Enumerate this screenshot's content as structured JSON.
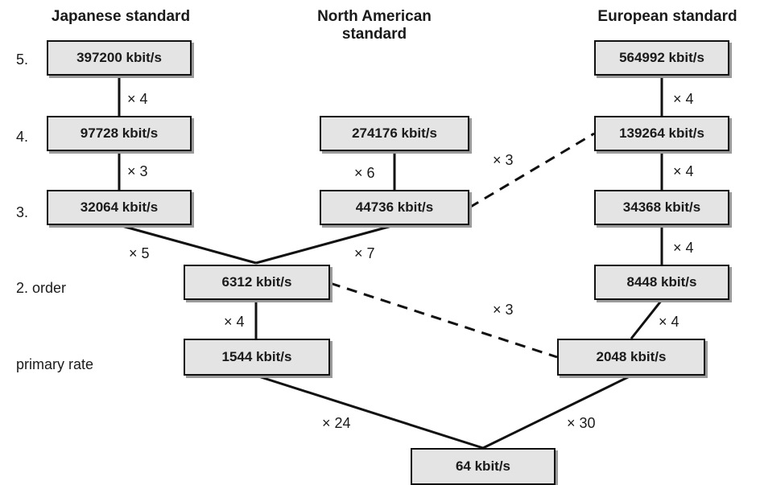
{
  "headers": {
    "japanese": "Japanese standard",
    "north_american": "North American standard",
    "european": "European standard"
  },
  "levels": {
    "l5": "5.",
    "l4": "4.",
    "l3": "3.",
    "l2": "2. order",
    "primary": "primary rate"
  },
  "nodes": {
    "jp5": "397200 kbit/s",
    "jp4": "97728 kbit/s",
    "jp3": "32064 kbit/s",
    "na4": "274176 kbit/s",
    "na3": "44736 kbit/s",
    "eu5": "564992 kbit/s",
    "eu4": "139264 kbit/s",
    "eu3": "34368 kbit/s",
    "eu2": "8448 kbit/s",
    "order2": "6312 kbit/s",
    "primary_na": "1544 kbit/s",
    "primary_eu": "2048 kbit/s",
    "base": "64 kbit/s"
  },
  "multipliers": {
    "jp5_jp4": "× 4",
    "jp4_jp3": "× 3",
    "jp3_o2": "× 5",
    "na4_na3": "× 6",
    "na3_o2": "× 7",
    "na3_eu4": "× 3",
    "eu5_eu4": "× 4",
    "eu4_eu3": "× 4",
    "eu3_eu2": "× 4",
    "eu2_peu": "× 4",
    "o2_peu": "× 3",
    "o2_pna": "× 4",
    "pna_base": "× 24",
    "peu_base": "× 30"
  }
}
